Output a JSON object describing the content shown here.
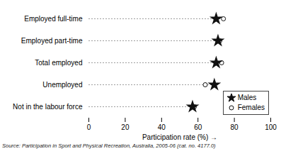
{
  "chart_data": {
    "type": "dot",
    "orientation": "horizontal",
    "categories": [
      "Employed full-time",
      "Employed part-time",
      "Total employed",
      "Unemployed",
      "Not in the labour force"
    ],
    "series": [
      {
        "name": "Males",
        "color": "#111111",
        "marker": "star",
        "values": [
          70,
          71,
          70,
          69,
          57
        ]
      },
      {
        "name": "Females",
        "color": "#111111",
        "marker": "circle",
        "values": [
          74,
          72,
          73,
          64,
          58
        ]
      }
    ],
    "xlabel": "Participation rate (%)",
    "xlim": [
      0,
      100
    ],
    "xticks": [
      0,
      20,
      40,
      60,
      80,
      100
    ],
    "line_style": "dashed",
    "legend": "lower right",
    "caption": "Source: Participation in Sport and Physical Recreation, Australia, 2005-06 (cat. no. 4177.0)"
  }
}
